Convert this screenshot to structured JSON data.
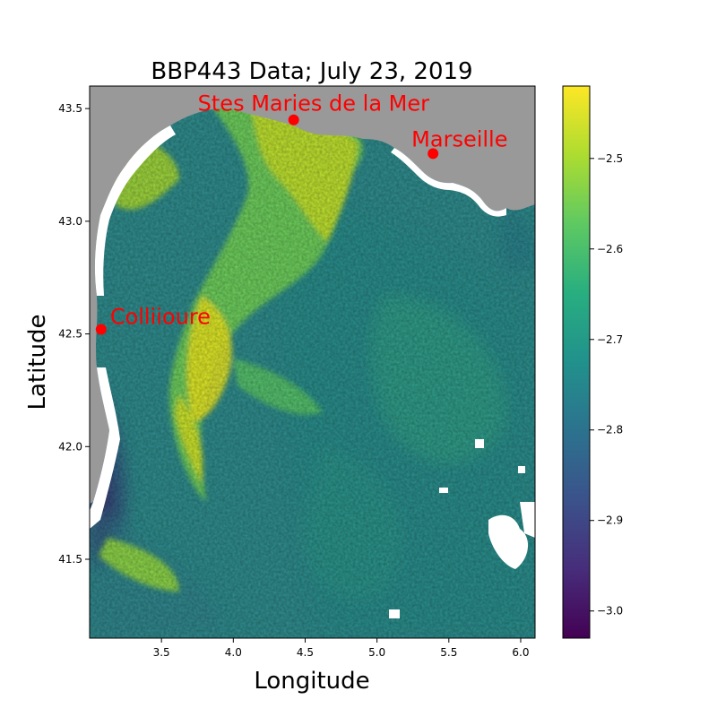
{
  "chart_data": {
    "type": "heatmap",
    "title": "BBP443 Data; July 23, 2019",
    "xlabel": "Longitude",
    "ylabel": "Latitude",
    "xlim": [
      3.0,
      6.1
    ],
    "ylim": [
      41.15,
      43.6
    ],
    "x_ticks": [
      3.5,
      4.0,
      4.5,
      5.0,
      5.5,
      6.0
    ],
    "y_ticks": [
      41.5,
      42.0,
      42.5,
      43.0,
      43.5
    ],
    "x_tick_labels": [
      "3.5",
      "4.0",
      "4.5",
      "5.0",
      "5.5",
      "6.0"
    ],
    "y_tick_labels": [
      "41.5",
      "42.0",
      "42.5",
      "43.0",
      "43.5"
    ],
    "colorbar": {
      "colormap": "viridis",
      "range": [
        -3.03,
        -2.42
      ],
      "ticks": [
        -2.5,
        -2.6,
        -2.7,
        -2.8,
        -2.9,
        -3.0
      ],
      "tick_labels": [
        "−2.5",
        "−2.6",
        "−2.7",
        "−2.8",
        "−2.9",
        "−3.0"
      ]
    },
    "land_color": "#999999",
    "nodata_color": "#ffffff",
    "markers": [
      {
        "name": "Stes Maries de la Mer",
        "lon": 4.42,
        "lat": 43.45
      },
      {
        "name": "Marseille",
        "lon": 5.39,
        "lat": 43.3
      },
      {
        "name": "Colliioure",
        "lon": 3.08,
        "lat": 42.52
      }
    ],
    "marker_color": "#ff0000"
  }
}
